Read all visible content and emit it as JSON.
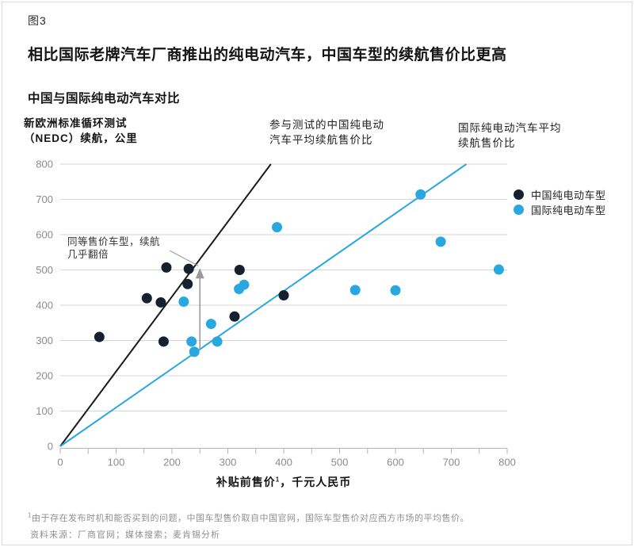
{
  "figure_label": "图3",
  "title": "相比国际老牌汽车厂商推出的纯电动汽车，中国车型的续航售价比更高",
  "subtitle": "中国与国际纯电动汽车对比",
  "y_axis_label": {
    "line1": "新欧洲标准循环测试",
    "line2": "（NEDC）续航，公里"
  },
  "x_axis_label": {
    "pre": "补贴前售价",
    "sup": "1",
    "post": "，千元人民币"
  },
  "annotations": {
    "china_avg_line": {
      "line1": "参与测试的中国纯电动",
      "line2": "汽车平均续航售价比"
    },
    "intl_avg_line": {
      "line1": "国际纯电动汽车平均",
      "line2": "续航售价比"
    },
    "callout": {
      "line1": "同等售价车型，续航",
      "line2": "几乎翻倍"
    }
  },
  "legend": {
    "items": [
      {
        "label": "中国纯电动车型",
        "color": "#16212e"
      },
      {
        "label": "国际纯电动车型",
        "color": "#29a8e0"
      }
    ]
  },
  "footnote": {
    "sup": "1",
    "text": "由于存在发布时机和能否买到的问题，中国车型售价取自中国官网，国际车型售价对应西方市场的平均售价。"
  },
  "source": "资料来源：厂商官网；媒体搜索；麦肯锡分析",
  "colors": {
    "china": "#16212e",
    "international": "#29a8e0",
    "china_line": "#1a1a1a",
    "intl_line": "#29a8e0",
    "grid": "#d6d6d6",
    "axis": "#b5b5b5",
    "tick_label": "#8c8c8c",
    "arrow": "#999999"
  },
  "chart_data": {
    "type": "scatter",
    "title": "中国与国际纯电动汽车对比",
    "xlabel": "补贴前售价，千元人民币",
    "ylabel": "新欧洲标准循环测试（NEDC）续航，公里",
    "xlim": [
      0,
      800
    ],
    "ylim": [
      0,
      800
    ],
    "x_tick_step": 100,
    "x_minor_tick_step": 50,
    "y_tick_step": 100,
    "grid": "horizontal",
    "legend_position": "top-right",
    "series": [
      {
        "name": "中国纯电动车型",
        "color": "#16212e",
        "points": [
          [
            70,
            310
          ],
          [
            155,
            420
          ],
          [
            180,
            408
          ],
          [
            185,
            297
          ],
          [
            190,
            507
          ],
          [
            228,
            460
          ],
          [
            230,
            503
          ],
          [
            312,
            368
          ],
          [
            321,
            500
          ],
          [
            400,
            428
          ]
        ]
      },
      {
        "name": "国际纯电动车型",
        "color": "#29a8e0",
        "points": [
          [
            221,
            410
          ],
          [
            235,
            297
          ],
          [
            240,
            268
          ],
          [
            270,
            347
          ],
          [
            281,
            297
          ],
          [
            320,
            446
          ],
          [
            329,
            458
          ],
          [
            388,
            621
          ],
          [
            528,
            443
          ],
          [
            600,
            442
          ],
          [
            645,
            714
          ],
          [
            681,
            580
          ],
          [
            785,
            501
          ]
        ]
      }
    ],
    "reference_lines": [
      {
        "name": "china_avg",
        "label": "参与测试的中国纯电动汽车平均续航售价比",
        "color": "#1a1a1a",
        "from": [
          0,
          0
        ],
        "to": [
          377,
          800
        ]
      },
      {
        "name": "intl_avg",
        "label": "国际纯电动汽车平均续航售价比",
        "color": "#29a8e0",
        "from": [
          0,
          0
        ],
        "to": [
          727,
          800
        ]
      }
    ],
    "arrow_annotation": {
      "label": "同等售价车型，续航几乎翻倍",
      "x": 250,
      "y_from": 275,
      "y_to": 505
    }
  }
}
